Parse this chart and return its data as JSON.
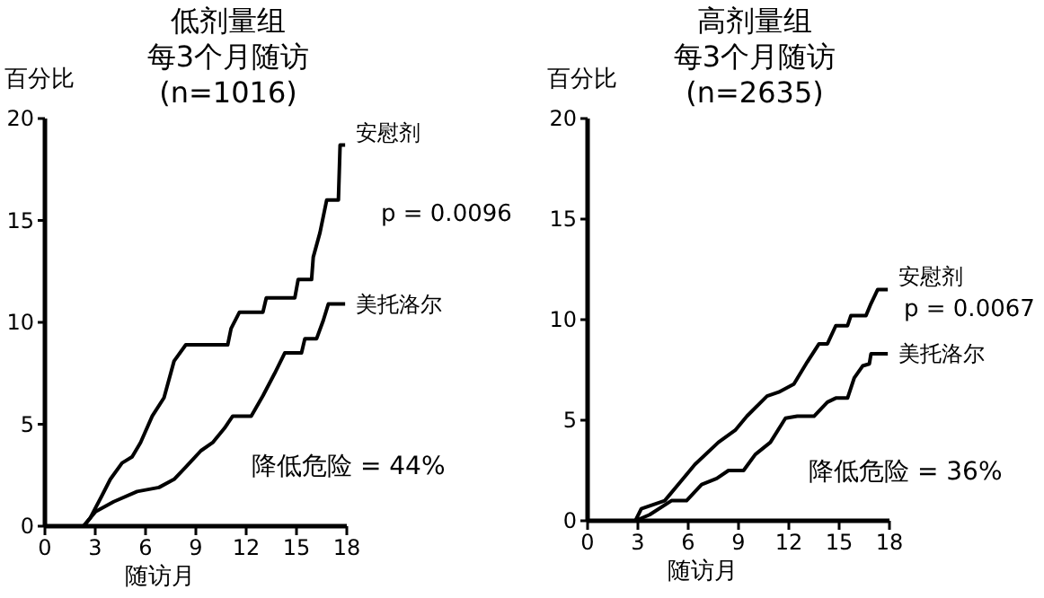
{
  "chart_data": [
    {
      "type": "line",
      "title": "低剂量组",
      "subtitle": "每3个月随访\n(n=1016)",
      "ylabel": "百分比",
      "xlabel": "随访月",
      "xlim": [
        0,
        18
      ],
      "xticks": [
        0,
        3,
        6,
        9,
        12,
        15,
        18
      ],
      "ylim": [
        0,
        20
      ],
      "yticks": [
        0,
        5,
        10,
        15,
        20
      ],
      "grid": false,
      "marker": "none",
      "line_style": "solid",
      "annotations": [
        "p = 0.0096",
        "降低危险 = 44%"
      ],
      "series": [
        {
          "name": "安慰剂",
          "color": "#000000",
          "x": [
            0,
            2.3,
            2.7,
            3.4,
            3.9,
            4.6,
            5.2,
            5.7,
            6.4,
            7.1,
            7.7,
            8.4,
            10.9,
            11.1,
            11.6,
            13.0,
            13.2,
            14.9,
            15.1,
            15.9,
            16.0,
            16.4,
            16.8,
            17.5,
            17.6,
            17.9
          ],
          "values": [
            0,
            0,
            0.4,
            1.5,
            2.3,
            3.1,
            3.4,
            4.1,
            5.4,
            6.3,
            8.1,
            8.9,
            8.9,
            9.7,
            10.5,
            10.5,
            11.2,
            11.2,
            12.1,
            12.1,
            13.2,
            14.4,
            16.0,
            16.0,
            18.7,
            18.7
          ]
        },
        {
          "name": "美托洛尔",
          "color": "#000000",
          "x": [
            0,
            2.3,
            3.0,
            4.1,
            5.5,
            6.8,
            7.7,
            8.4,
            9.3,
            10.0,
            10.7,
            11.2,
            12.3,
            13.0,
            13.7,
            14.3,
            15.3,
            15.5,
            16.2,
            16.6,
            16.9,
            17.9
          ],
          "values": [
            0,
            0,
            0.7,
            1.2,
            1.7,
            1.9,
            2.3,
            2.9,
            3.7,
            4.1,
            4.8,
            5.4,
            5.4,
            6.4,
            7.5,
            8.5,
            8.5,
            9.2,
            9.2,
            10.1,
            10.9,
            10.9
          ]
        }
      ]
    },
    {
      "type": "line",
      "title": "高剂量组",
      "subtitle": "每3个月随访\n(n=2635)",
      "ylabel": "百分比",
      "xlabel": "随访月",
      "xlim": [
        0,
        18
      ],
      "xticks": [
        0,
        3,
        6,
        9,
        12,
        15,
        18
      ],
      "ylim": [
        0,
        20
      ],
      "yticks": [
        0,
        5,
        10,
        15,
        20
      ],
      "grid": false,
      "marker": "none",
      "line_style": "solid",
      "annotations": [
        "p = 0.0067",
        "降低危险 = 36%"
      ],
      "series": [
        {
          "name": "安慰剂",
          "color": "#000000",
          "x": [
            0,
            2.85,
            3.2,
            4.6,
            5.7,
            6.4,
            7.8,
            8.8,
            9.5,
            10.7,
            11.4,
            12.3,
            13.1,
            13.8,
            14.3,
            14.8,
            15.5,
            15.7,
            16.6,
            16.9,
            17.3,
            17.9
          ],
          "values": [
            0,
            0,
            0.6,
            1.0,
            2.1,
            2.8,
            3.9,
            4.5,
            5.2,
            6.2,
            6.4,
            6.8,
            7.9,
            8.8,
            8.8,
            9.7,
            9.7,
            10.2,
            10.2,
            10.8,
            11.5,
            11.5
          ]
        },
        {
          "name": "美托洛尔",
          "color": "#000000",
          "x": [
            0,
            2.85,
            3.7,
            5.0,
            5.9,
            6.8,
            7.7,
            8.4,
            9.3,
            10.0,
            10.9,
            11.8,
            12.5,
            13.5,
            14.3,
            14.8,
            15.5,
            15.9,
            16.4,
            16.8,
            16.9,
            17.9
          ],
          "values": [
            0,
            0,
            0.3,
            1.0,
            1.0,
            1.8,
            2.1,
            2.5,
            2.5,
            3.3,
            3.9,
            5.1,
            5.2,
            5.2,
            5.9,
            6.1,
            6.1,
            7.1,
            7.7,
            7.8,
            8.3,
            8.3
          ]
        }
      ]
    }
  ]
}
